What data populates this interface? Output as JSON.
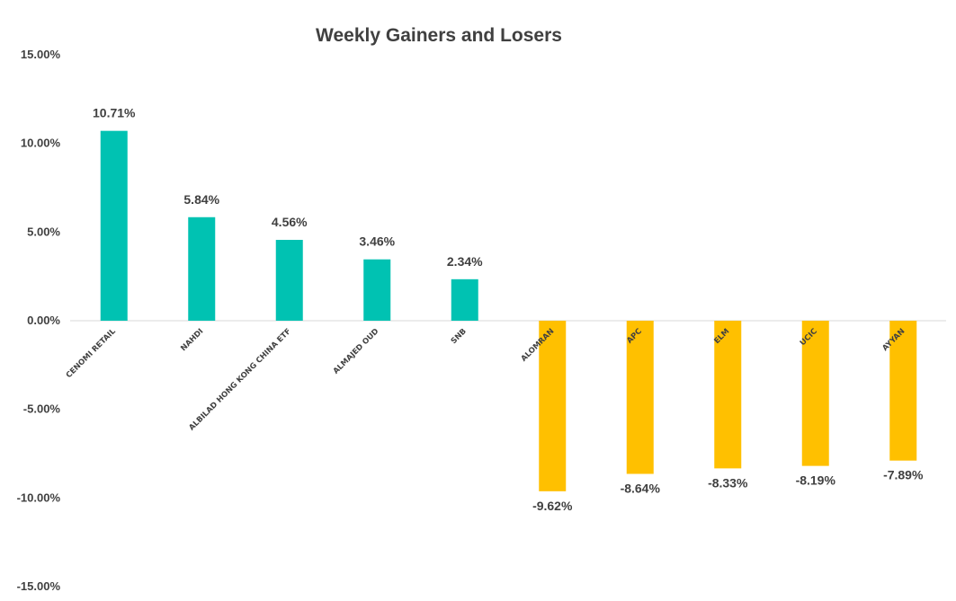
{
  "chart_data": {
    "type": "bar",
    "title": "Weekly Gainers and Losers",
    "xlabel": "",
    "ylabel": "",
    "ylim": [
      -15,
      15
    ],
    "yticks": [
      15,
      10,
      5,
      0,
      -5,
      -10,
      -15
    ],
    "ytick_labels": [
      "15.00%",
      "10.00%",
      "5.00%",
      "0.00%",
      "-5.00%",
      "-10.00%",
      "-15.00%"
    ],
    "grid": false,
    "legend": "none",
    "categories": [
      "CENOMI RETAIL",
      "NAHDI",
      "ALBILAD HONG KONG CHINA ETF",
      "ALMAJED OUD",
      "SNB",
      "ALOMRAN",
      "APC",
      "ELM",
      "UCIC",
      "AYYAN"
    ],
    "values": [
      10.71,
      5.84,
      4.56,
      3.46,
      2.34,
      -9.62,
      -8.64,
      -8.33,
      -8.19,
      -7.89
    ],
    "data_labels": [
      "10.71%",
      "5.84%",
      "4.56%",
      "3.46%",
      "2.34%",
      "-9.62%",
      "-8.64%",
      "-8.33%",
      "-8.19%",
      "-7.89%"
    ],
    "colors": {
      "gainer": "#00C2B2",
      "loser": "#FFC000",
      "axis": "#D9D9D9",
      "text": "#404040"
    }
  }
}
